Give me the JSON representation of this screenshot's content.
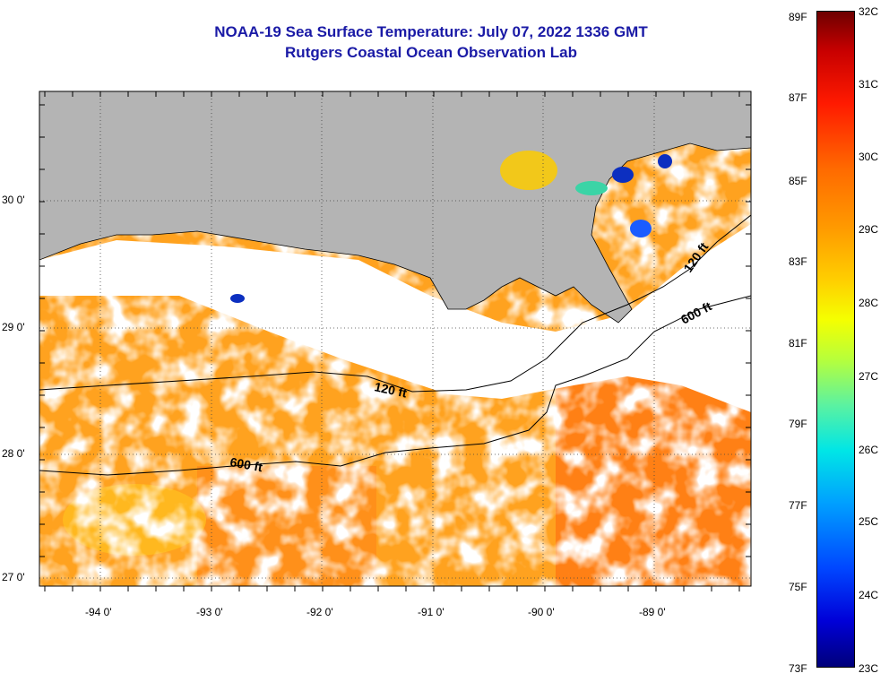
{
  "title": {
    "line1": "NOAA-19 Sea Surface Temperature:  July 07, 2022 1336 GMT",
    "line2": "Rutgers Coastal Ocean Observation Lab"
  },
  "map": {
    "longitude_labels": [
      "-94 0'",
      "-93 0'",
      "-92 0'",
      "-91 0'",
      "-90 0'",
      "-89 0'"
    ],
    "latitude_labels": [
      "30 0'",
      "29 0'",
      "28 0'",
      "27 0'"
    ],
    "contour_labels": [
      "120 ft",
      "600 ft",
      "120 ft",
      "600 ft"
    ],
    "colors": {
      "land": "#b4b4b4",
      "cloud": "#ffffff",
      "grid": "#444444"
    }
  },
  "colorbar": {
    "fahrenheit": [
      "89F",
      "87F",
      "85F",
      "83F",
      "81F",
      "79F",
      "77F",
      "75F",
      "73F"
    ],
    "celsius": [
      "32C",
      "31C",
      "30C",
      "29C",
      "28C",
      "27C",
      "26C",
      "25C",
      "24C",
      "23C"
    ]
  }
}
